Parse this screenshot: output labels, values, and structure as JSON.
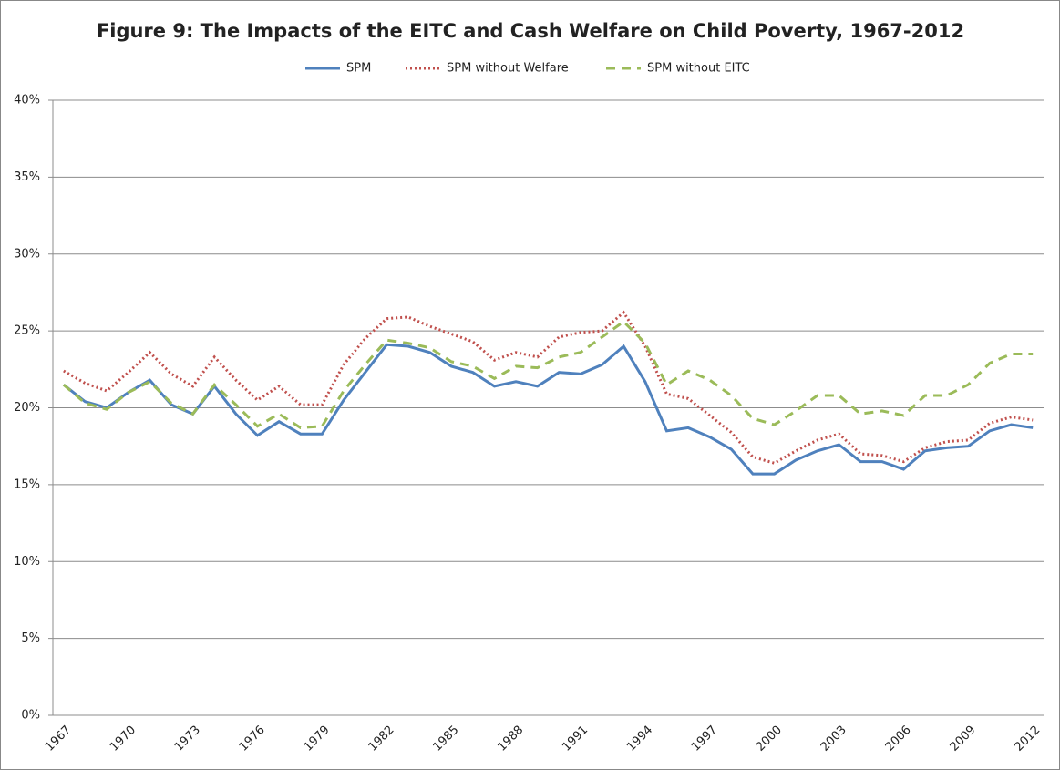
{
  "chart_data": {
    "type": "line",
    "title": "Figure 9: The Impacts of the EITC and Cash Welfare on Child Poverty, 1967-2012",
    "categories": [
      "1967",
      null,
      null,
      "1970",
      null,
      null,
      "1973",
      null,
      null,
      "1976",
      null,
      null,
      "1979",
      null,
      null,
      "1982",
      null,
      null,
      "1985",
      null,
      null,
      "1988",
      null,
      null,
      "1991",
      null,
      null,
      "1994",
      null,
      null,
      "1997",
      null,
      null,
      "2000",
      null,
      null,
      "2003",
      null,
      null,
      "2006",
      null,
      null,
      "2009",
      null,
      null,
      "2012"
    ],
    "series": [
      {
        "name": "SPM",
        "color": "#4f81bd",
        "dash": "solid",
        "values": [
          21.5,
          20.4,
          20.0,
          21.0,
          21.8,
          20.2,
          19.6,
          21.4,
          19.6,
          18.2,
          19.1,
          18.3,
          18.3,
          20.5,
          22.3,
          24.1,
          24.0,
          23.6,
          22.7,
          22.3,
          21.4,
          21.7,
          21.4,
          22.3,
          22.2,
          22.8,
          24.0,
          21.7,
          18.5,
          18.7,
          18.1,
          17.3,
          15.7,
          15.7,
          16.6,
          17.2,
          17.6,
          16.5,
          16.5,
          16.0,
          17.2,
          17.4,
          17.5,
          18.5,
          18.9,
          18.7
        ]
      },
      {
        "name": "SPM without Welfare",
        "color": "#c0504d",
        "dash": "dotted",
        "values": [
          22.4,
          21.6,
          21.1,
          22.3,
          23.6,
          22.2,
          21.4,
          23.3,
          21.8,
          20.5,
          21.4,
          20.2,
          20.2,
          22.8,
          24.5,
          25.8,
          25.9,
          25.3,
          24.8,
          24.3,
          23.1,
          23.6,
          23.3,
          24.6,
          24.9,
          25.0,
          26.2,
          24.0,
          20.9,
          20.6,
          19.5,
          18.4,
          16.8,
          16.4,
          17.2,
          17.9,
          18.3,
          17.0,
          16.9,
          16.5,
          17.4,
          17.8,
          17.9,
          19.0,
          19.4,
          19.2
        ]
      },
      {
        "name": "SPM without EITC",
        "color": "#9bbb59",
        "dash": "dashed",
        "values": [
          21.5,
          20.3,
          19.9,
          21.0,
          21.7,
          20.3,
          19.6,
          21.5,
          20.2,
          18.8,
          19.6,
          18.7,
          18.8,
          21.1,
          22.8,
          24.4,
          24.2,
          23.9,
          23.0,
          22.7,
          21.9,
          22.7,
          22.6,
          23.3,
          23.6,
          24.6,
          25.6,
          24.2,
          21.5,
          22.4,
          21.8,
          20.8,
          19.3,
          18.9,
          19.8,
          20.8,
          20.8,
          19.6,
          19.8,
          19.5,
          20.8,
          20.8,
          21.5,
          22.9,
          23.5,
          23.5
        ]
      }
    ],
    "ylim": [
      0,
      40
    ],
    "yticks": [
      {
        "value": 0,
        "label": "0%"
      },
      {
        "value": 5,
        "label": "5%"
      },
      {
        "value": 10,
        "label": "10%"
      },
      {
        "value": 15,
        "label": "15%"
      },
      {
        "value": 20,
        "label": "20%"
      },
      {
        "value": 25,
        "label": "25%"
      },
      {
        "value": 30,
        "label": "30%"
      },
      {
        "value": 35,
        "label": "35%"
      },
      {
        "value": 40,
        "label": "40%"
      }
    ],
    "grid": true,
    "legend": "top"
  }
}
